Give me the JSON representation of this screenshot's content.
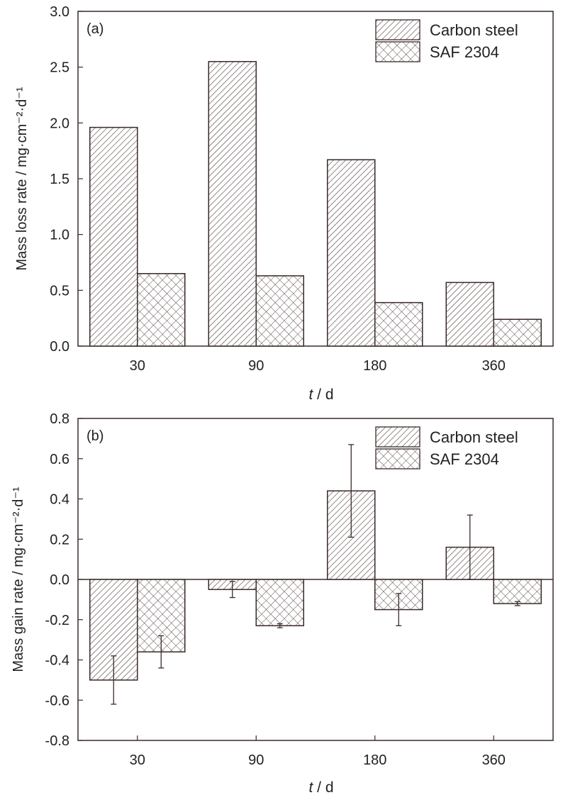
{
  "chart_data": [
    {
      "type": "bar",
      "panel_label": "(a)",
      "categories": [
        "30",
        "90",
        "180",
        "360"
      ],
      "xlabel_italic": "t",
      "xlabel_rest": " / d",
      "ylabel": "Mass loss rate  / mg·cm⁻²·d⁻¹",
      "ylim": [
        0,
        3.0
      ],
      "yticks": [
        "0.0",
        "0.5",
        "1.0",
        "1.5",
        "2.0",
        "2.5",
        "3.0"
      ],
      "legend_position": "top-right",
      "series": [
        {
          "name": "Carbon steel",
          "pattern": "diagonal-hatch",
          "values": [
            1.96,
            2.55,
            1.67,
            0.57
          ]
        },
        {
          "name": "SAF 2304",
          "pattern": "cross-hatch",
          "values": [
            0.65,
            0.63,
            0.39,
            0.24
          ]
        }
      ]
    },
    {
      "type": "bar",
      "panel_label": "(b)",
      "categories": [
        "30",
        "90",
        "180",
        "360"
      ],
      "xlabel_italic": "t",
      "xlabel_rest": " / d",
      "ylabel": "Mass gain rate / mg·cm⁻²·d⁻¹",
      "ylim": [
        -0.8,
        0.8
      ],
      "yticks": [
        "-0.8",
        "-0.6",
        "-0.4",
        "-0.2",
        "0.0",
        "0.2",
        "0.4",
        "0.6",
        "0.8"
      ],
      "legend_position": "top-right",
      "series": [
        {
          "name": "Carbon steel",
          "pattern": "diagonal-hatch",
          "values": [
            -0.5,
            -0.05,
            0.44,
            0.16
          ],
          "errors": [
            0.12,
            0.04,
            0.23,
            0.16
          ]
        },
        {
          "name": "SAF 2304",
          "pattern": "cross-hatch",
          "values": [
            -0.36,
            -0.23,
            -0.15,
            -0.12
          ],
          "errors": [
            0.08,
            0.01,
            0.08,
            0.01
          ]
        }
      ]
    }
  ]
}
